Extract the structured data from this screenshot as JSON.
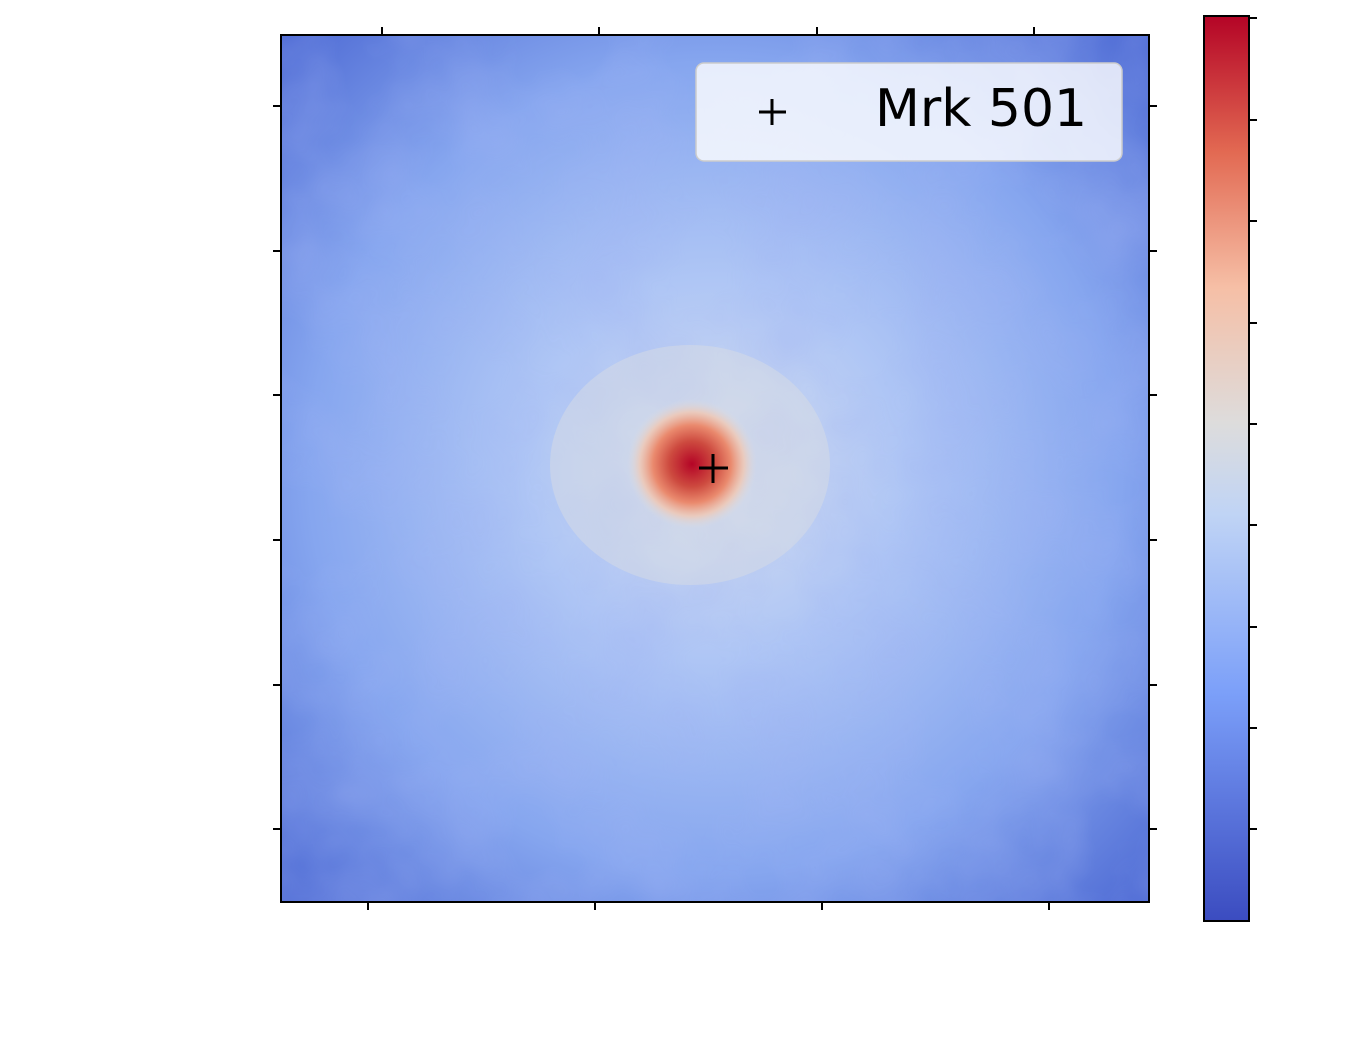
{
  "chart_data": {
    "type": "skymap",
    "legend": [
      "Mrk 501"
    ]
  }
}
